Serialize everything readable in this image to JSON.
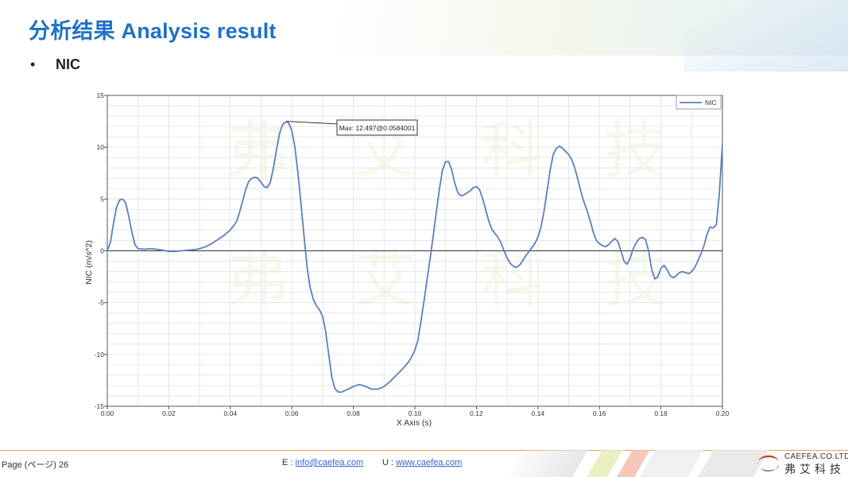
{
  "slide": {
    "title": "分析结果 Analysis result",
    "bullet": "NIC"
  },
  "footer": {
    "page_label": "Page (ページ)  26",
    "email_prefix": "E : ",
    "email": "info@caefea.com",
    "url_prefix": "U : ",
    "url": "www.caefea.com"
  },
  "logo": {
    "english": "CAEFEA.CO.LTD",
    "chinese": "弗艾科技"
  },
  "watermark": [
    "弗",
    "艾",
    "科",
    "技"
  ],
  "chart_data": {
    "type": "line",
    "xlabel": "X Axis (s)",
    "ylabel": "NIC (m/s^2)",
    "xlim": [
      0,
      0.2
    ],
    "ylim": [
      -15,
      15
    ],
    "x_ticks": [
      "0.00",
      "0.02",
      "0.04",
      "0.06",
      "0.08",
      "0.10",
      "0.12",
      "0.14",
      "0.16",
      "0.18",
      "0.20"
    ],
    "y_ticks": [
      "15",
      "10",
      "5",
      "0",
      "-5",
      "-10",
      "-15"
    ],
    "grid": true,
    "legend_position": "top-right",
    "annotation": "Max: 12.497@0.0584001",
    "series": [
      {
        "name": "NIC",
        "color": "#5b7fbf",
        "points": [
          [
            0.0,
            0.0
          ],
          [
            0.001,
            0.8
          ],
          [
            0.002,
            2.6
          ],
          [
            0.003,
            4.2
          ],
          [
            0.004,
            4.9
          ],
          [
            0.005,
            5.0
          ],
          [
            0.006,
            4.6
          ],
          [
            0.007,
            3.3
          ],
          [
            0.008,
            1.8
          ],
          [
            0.009,
            0.6
          ],
          [
            0.01,
            0.2
          ],
          [
            0.012,
            0.15
          ],
          [
            0.014,
            0.2
          ],
          [
            0.016,
            0.15
          ],
          [
            0.018,
            0.05
          ],
          [
            0.02,
            -0.05
          ],
          [
            0.022,
            -0.05
          ],
          [
            0.024,
            0.0
          ],
          [
            0.026,
            0.05
          ],
          [
            0.028,
            0.1
          ],
          [
            0.03,
            0.2
          ],
          [
            0.032,
            0.4
          ],
          [
            0.034,
            0.7
          ],
          [
            0.036,
            1.1
          ],
          [
            0.038,
            1.5
          ],
          [
            0.04,
            2.0
          ],
          [
            0.042,
            2.8
          ],
          [
            0.043,
            3.7
          ],
          [
            0.044,
            4.8
          ],
          [
            0.045,
            5.9
          ],
          [
            0.046,
            6.7
          ],
          [
            0.047,
            7.0
          ],
          [
            0.048,
            7.1
          ],
          [
            0.049,
            7.0
          ],
          [
            0.05,
            6.6
          ],
          [
            0.051,
            6.2
          ],
          [
            0.052,
            6.1
          ],
          [
            0.053,
            6.6
          ],
          [
            0.054,
            8.0
          ],
          [
            0.055,
            9.7
          ],
          [
            0.056,
            11.3
          ],
          [
            0.057,
            12.2
          ],
          [
            0.0584,
            12.497
          ],
          [
            0.059,
            12.3
          ],
          [
            0.06,
            11.6
          ],
          [
            0.061,
            10.0
          ],
          [
            0.062,
            7.5
          ],
          [
            0.063,
            4.5
          ],
          [
            0.064,
            1.3
          ],
          [
            0.065,
            -1.7
          ],
          [
            0.066,
            -3.6
          ],
          [
            0.067,
            -4.7
          ],
          [
            0.068,
            -5.3
          ],
          [
            0.069,
            -5.7
          ],
          [
            0.07,
            -6.3
          ],
          [
            0.071,
            -7.8
          ],
          [
            0.072,
            -10.0
          ],
          [
            0.073,
            -12.2
          ],
          [
            0.074,
            -13.3
          ],
          [
            0.075,
            -13.6
          ],
          [
            0.076,
            -13.65
          ],
          [
            0.078,
            -13.4
          ],
          [
            0.08,
            -13.1
          ],
          [
            0.082,
            -12.9
          ],
          [
            0.084,
            -13.1
          ],
          [
            0.086,
            -13.35
          ],
          [
            0.088,
            -13.35
          ],
          [
            0.09,
            -13.1
          ],
          [
            0.092,
            -12.6
          ],
          [
            0.094,
            -12.0
          ],
          [
            0.096,
            -11.4
          ],
          [
            0.098,
            -10.7
          ],
          [
            0.099,
            -10.2
          ],
          [
            0.1,
            -9.6
          ],
          [
            0.101,
            -8.6
          ],
          [
            0.102,
            -6.8
          ],
          [
            0.103,
            -4.8
          ],
          [
            0.104,
            -2.7
          ],
          [
            0.105,
            -0.7
          ],
          [
            0.106,
            1.5
          ],
          [
            0.107,
            3.8
          ],
          [
            0.108,
            6.0
          ],
          [
            0.109,
            7.8
          ],
          [
            0.11,
            8.6
          ],
          [
            0.111,
            8.6
          ],
          [
            0.112,
            7.8
          ],
          [
            0.113,
            6.5
          ],
          [
            0.114,
            5.6
          ],
          [
            0.115,
            5.3
          ],
          [
            0.116,
            5.4
          ],
          [
            0.117,
            5.6
          ],
          [
            0.118,
            5.8
          ],
          [
            0.119,
            6.1
          ],
          [
            0.12,
            6.2
          ],
          [
            0.121,
            5.9
          ],
          [
            0.122,
            5.1
          ],
          [
            0.123,
            4.0
          ],
          [
            0.124,
            2.9
          ],
          [
            0.125,
            2.1
          ],
          [
            0.126,
            1.7
          ],
          [
            0.127,
            1.3
          ],
          [
            0.128,
            0.8
          ],
          [
            0.129,
            0.0
          ],
          [
            0.13,
            -0.7
          ],
          [
            0.131,
            -1.2
          ],
          [
            0.132,
            -1.5
          ],
          [
            0.133,
            -1.6
          ],
          [
            0.134,
            -1.4
          ],
          [
            0.135,
            -1.0
          ],
          [
            0.136,
            -0.5
          ],
          [
            0.137,
            -0.1
          ],
          [
            0.138,
            0.3
          ],
          [
            0.139,
            0.7
          ],
          [
            0.14,
            1.3
          ],
          [
            0.141,
            2.3
          ],
          [
            0.142,
            3.8
          ],
          [
            0.143,
            5.8
          ],
          [
            0.144,
            7.8
          ],
          [
            0.145,
            9.3
          ],
          [
            0.146,
            9.9
          ],
          [
            0.147,
            10.1
          ],
          [
            0.148,
            9.9
          ],
          [
            0.149,
            9.6
          ],
          [
            0.15,
            9.3
          ],
          [
            0.151,
            8.8
          ],
          [
            0.152,
            8.0
          ],
          [
            0.153,
            6.9
          ],
          [
            0.154,
            5.7
          ],
          [
            0.155,
            4.7
          ],
          [
            0.156,
            3.9
          ],
          [
            0.157,
            2.9
          ],
          [
            0.158,
            1.8
          ],
          [
            0.159,
            1.0
          ],
          [
            0.16,
            0.7
          ],
          [
            0.161,
            0.5
          ],
          [
            0.162,
            0.4
          ],
          [
            0.163,
            0.6
          ],
          [
            0.164,
            0.9
          ],
          [
            0.165,
            1.2
          ],
          [
            0.166,
            0.9
          ],
          [
            0.167,
            0.0
          ],
          [
            0.168,
            -1.0
          ],
          [
            0.169,
            -1.3
          ],
          [
            0.17,
            -0.7
          ],
          [
            0.171,
            0.2
          ],
          [
            0.172,
            0.8
          ],
          [
            0.173,
            1.2
          ],
          [
            0.174,
            1.3
          ],
          [
            0.175,
            1.1
          ],
          [
            0.176,
            0.0
          ],
          [
            0.177,
            -1.8
          ],
          [
            0.178,
            -2.7
          ],
          [
            0.179,
            -2.5
          ],
          [
            0.18,
            -1.7
          ],
          [
            0.181,
            -1.4
          ],
          [
            0.182,
            -1.8
          ],
          [
            0.183,
            -2.4
          ],
          [
            0.184,
            -2.6
          ],
          [
            0.185,
            -2.4
          ],
          [
            0.186,
            -2.1
          ],
          [
            0.187,
            -2.0
          ],
          [
            0.188,
            -2.1
          ],
          [
            0.189,
            -2.2
          ],
          [
            0.19,
            -2.0
          ],
          [
            0.191,
            -1.6
          ],
          [
            0.192,
            -1.0
          ],
          [
            0.193,
            -0.3
          ],
          [
            0.194,
            0.5
          ],
          [
            0.195,
            1.6
          ],
          [
            0.196,
            2.3
          ],
          [
            0.197,
            2.2
          ],
          [
            0.198,
            2.5
          ],
          [
            0.199,
            5.5
          ],
          [
            0.2,
            10.3
          ]
        ]
      }
    ]
  }
}
